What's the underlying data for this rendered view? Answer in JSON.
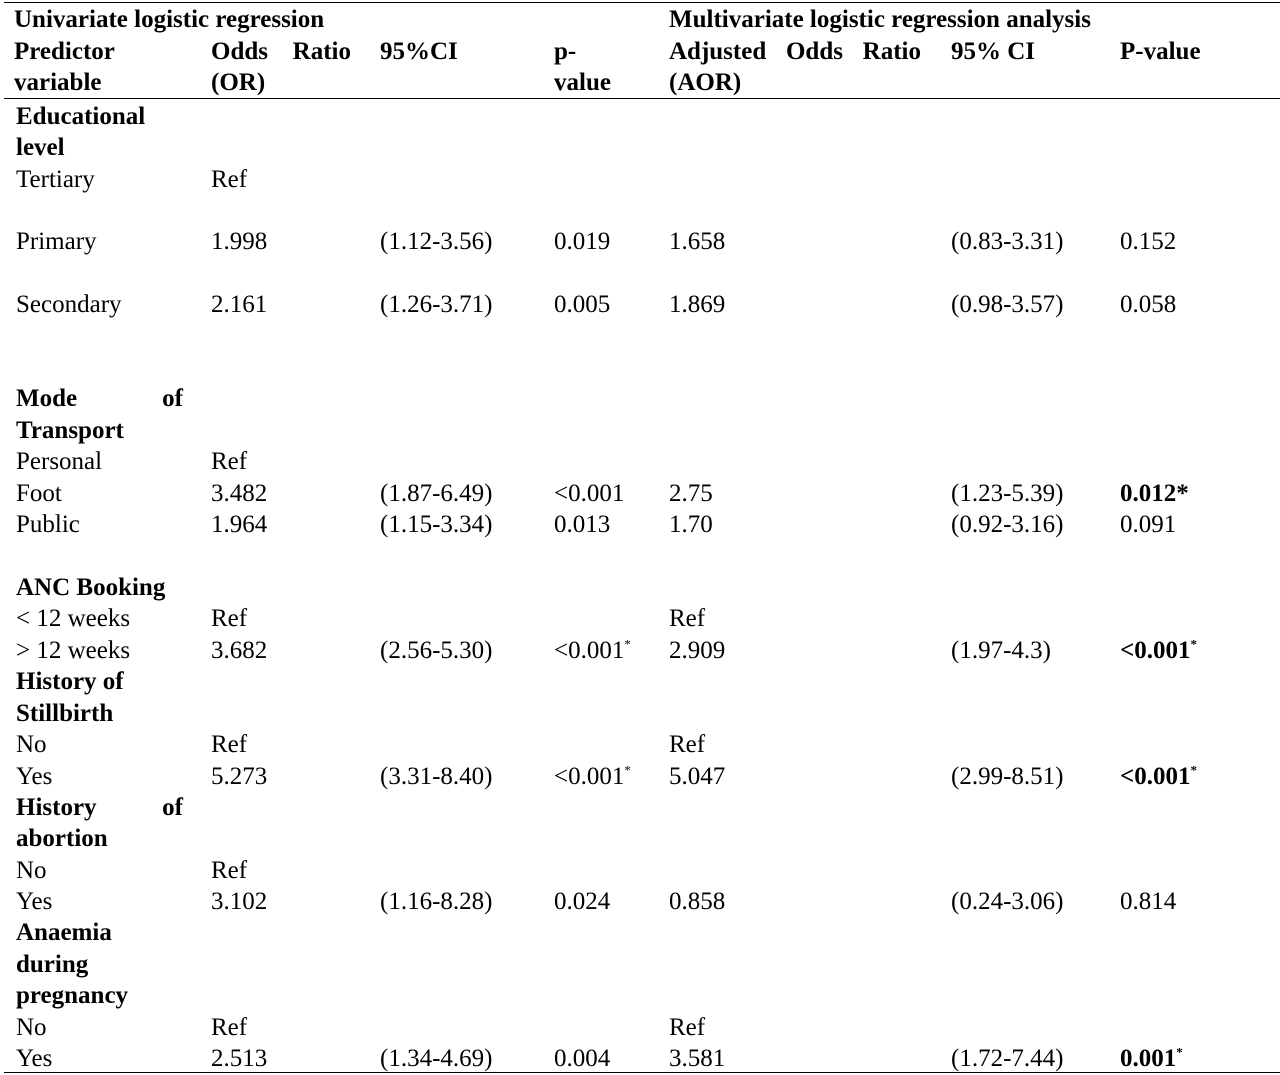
{
  "headers": {
    "univariate": "Univariate logistic regression",
    "multivariate": "Multivariate logistic regression analysis",
    "predictor_1": "Predictor",
    "predictor_2": "variable",
    "or_1a": "Odds",
    "or_1b": "Ratio",
    "or_2": "(OR)",
    "ci": "95%CI",
    "p_1": "p-",
    "p_2": "value",
    "aor_1a": "Adjusted",
    "aor_1b": "Odds",
    "aor_1c": "Ratio",
    "aor_2": "(AOR)",
    "ci2": "95% CI",
    "p2": "P-value"
  },
  "groups": {
    "edu_1": "Educational",
    "edu_2": "level",
    "mode_1a": "Mode",
    "mode_1b": "of",
    "mode_2": "Transport",
    "anc": "ANC Booking",
    "still_1": "History of",
    "still_2": "Stillbirth",
    "abort_1a": "History",
    "abort_1b": "of",
    "abort_2": "abortion",
    "anaemia_1": "Anaemia",
    "anaemia_2": "during",
    "anaemia_3": "pregnancy"
  },
  "rows": {
    "tertiary": {
      "label": "Tertiary",
      "or": "Ref"
    },
    "primary": {
      "label": "Primary",
      "or": "1.998",
      "ci": "(1.12-3.56)",
      "p": "0.019",
      "aor": "1.658",
      "ci2": "(0.83-3.31)",
      "p2": "0.152"
    },
    "secondary": {
      "label": "Secondary",
      "or": "2.161",
      "ci": "(1.26-3.71)",
      "p": "0.005",
      "aor": "1.869",
      "ci2": "(0.98-3.57)",
      "p2": "0.058"
    },
    "personal": {
      "label": "Personal",
      "or": "Ref"
    },
    "foot": {
      "label": "Foot",
      "or": "3.482",
      "ci": "(1.87-6.49)",
      "p": "<0.001",
      "aor": "2.75",
      "ci2": "(1.23-5.39)",
      "p2": "0.012*"
    },
    "public": {
      "label": "Public",
      "or": "1.964",
      "ci": "(1.15-3.34)",
      "p": "0.013",
      "aor": "1.70",
      "ci2": "(0.92-3.16)",
      "p2": "0.091"
    },
    "lt12": {
      "label": "< 12 weeks",
      "or": "Ref",
      "aor": "Ref"
    },
    "gt12": {
      "label": "> 12 weeks",
      "or": "3.682",
      "ci": "(2.56-5.30)",
      "p": "<0.001",
      "p_mark": "*",
      "aor": "2.909",
      "ci2": "(1.97-4.3)",
      "p2": "<0.001",
      "p2_mark": "*"
    },
    "still_no": {
      "label": "No",
      "or": "Ref",
      "aor": "Ref"
    },
    "still_yes": {
      "label": "Yes",
      "or": "5.273",
      "ci": "(3.31-8.40)",
      "p": "<0.001",
      "p_mark": "*",
      "aor": "5.047",
      "ci2": "(2.99-8.51)",
      "p2": "<0.001",
      "p2_mark": "*"
    },
    "abort_no": {
      "label": "No",
      "or": "Ref"
    },
    "abort_yes": {
      "label": "Yes",
      "or": "3.102",
      "ci": "(1.16-8.28)",
      "p": "0.024",
      "aor": "0.858",
      "ci2": "(0.24-3.06)",
      "p2": "0.814"
    },
    "anaem_no": {
      "label": "No",
      "or": "Ref",
      "aor": "Ref"
    },
    "anaem_yes": {
      "label": "Yes",
      "or": "2.513",
      "ci": "(1.34-4.69)",
      "p": "0.004",
      "aor": "3.581",
      "ci2": "(1.72-7.44)",
      "p2": "0.001",
      "p2_mark": "*"
    }
  }
}
